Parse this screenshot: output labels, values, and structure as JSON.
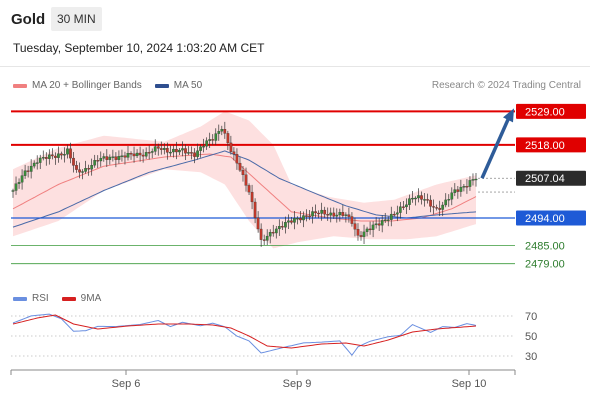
{
  "header": {
    "symbol": "Gold",
    "interval": "30 MIN",
    "datetime": "Tuesday, September 10, 2024 1:03:20 AM CET"
  },
  "legend": {
    "main": [
      {
        "name": "MA 20 + Bollinger Bands",
        "color": "#f08080"
      },
      {
        "name": "MA 50",
        "color": "#2f4f8f"
      }
    ],
    "rsi": [
      {
        "name": "RSI",
        "color": "#6a8fe0"
      },
      {
        "name": "9MA",
        "color": "#d62020"
      }
    ]
  },
  "copyright": "Research © 2024 Trading Central",
  "chart_data": [
    {
      "type": "candlestick",
      "x_labels": [
        "Sep 6",
        "Sep 9",
        "Sep 10"
      ],
      "ylim": [
        2472,
        2536
      ],
      "current_price": 2507.04,
      "levels": [
        {
          "label": "2529.00",
          "value": 2529.0,
          "kind": "resistance",
          "color": "#e00000"
        },
        {
          "label": "2518.00",
          "value": 2518.0,
          "kind": "resistance",
          "color": "#e00000"
        },
        {
          "label": "2507.04",
          "value": 2507.04,
          "kind": "last",
          "color": "#333333"
        },
        {
          "label": "2494.00",
          "value": 2494.0,
          "kind": "pivot",
          "color": "#1e5ad6"
        },
        {
          "label": "2485.00",
          "value": 2485.0,
          "kind": "support",
          "color": "#3a9a3a"
        },
        {
          "label": "2479.00",
          "value": 2479.0,
          "kind": "support",
          "color": "#3a9a3a"
        }
      ],
      "forecast": {
        "from": 2507.04,
        "to": 2529.0,
        "color": "#2e5c99"
      },
      "price_keypoints": [
        [
          0,
          2503
        ],
        [
          4,
          2509
        ],
        [
          8,
          2513
        ],
        [
          12,
          2514
        ],
        [
          16,
          2515
        ],
        [
          18,
          2516
        ],
        [
          21,
          2509
        ],
        [
          24,
          2510
        ],
        [
          28,
          2513
        ],
        [
          32,
          2514
        ],
        [
          36,
          2514
        ],
        [
          40,
          2515
        ],
        [
          44,
          2515
        ],
        [
          48,
          2517
        ],
        [
          52,
          2516
        ],
        [
          56,
          2516
        ],
        [
          60,
          2515
        ],
        [
          63,
          2518
        ],
        [
          66,
          2520
        ],
        [
          69,
          2524
        ],
        [
          72,
          2516
        ],
        [
          75,
          2510
        ],
        [
          78,
          2503
        ],
        [
          82,
          2486
        ],
        [
          86,
          2490
        ],
        [
          90,
          2492
        ],
        [
          94,
          2494
        ],
        [
          98,
          2495
        ],
        [
          102,
          2496
        ],
        [
          106,
          2495
        ],
        [
          110,
          2495
        ],
        [
          112,
          2493
        ],
        [
          114,
          2488
        ],
        [
          116,
          2489
        ],
        [
          120,
          2492
        ],
        [
          124,
          2494
        ],
        [
          126,
          2495
        ],
        [
          128,
          2497
        ],
        [
          132,
          2501
        ],
        [
          136,
          2500
        ],
        [
          140,
          2497
        ],
        [
          142,
          2498
        ],
        [
          146,
          2503
        ],
        [
          150,
          2505
        ],
        [
          153,
          2507.04
        ]
      ],
      "ma20_keypoints": [
        [
          0,
          2497
        ],
        [
          15,
          2505
        ],
        [
          30,
          2511
        ],
        [
          50,
          2514
        ],
        [
          65,
          2515
        ],
        [
          72,
          2514
        ],
        [
          82,
          2505
        ],
        [
          92,
          2496
        ],
        [
          105,
          2494
        ],
        [
          115,
          2493
        ],
        [
          125,
          2493
        ],
        [
          135,
          2494
        ],
        [
          145,
          2497
        ],
        [
          153,
          2501
        ]
      ],
      "ma50_keypoints": [
        [
          0,
          2491
        ],
        [
          15,
          2496
        ],
        [
          30,
          2503
        ],
        [
          45,
          2509
        ],
        [
          60,
          2513
        ],
        [
          70,
          2516
        ],
        [
          78,
          2513
        ],
        [
          88,
          2507
        ],
        [
          100,
          2502
        ],
        [
          110,
          2498
        ],
        [
          120,
          2495
        ],
        [
          130,
          2494
        ],
        [
          140,
          2495
        ],
        [
          153,
          2496
        ]
      ],
      "bb_upper_keypoints": [
        [
          0,
          2510
        ],
        [
          15,
          2517
        ],
        [
          30,
          2521
        ],
        [
          50,
          2519
        ],
        [
          62,
          2524
        ],
        [
          70,
          2529
        ],
        [
          78,
          2526
        ],
        [
          86,
          2518
        ],
        [
          92,
          2505
        ],
        [
          104,
          2501
        ],
        [
          116,
          2499
        ],
        [
          126,
          2500
        ],
        [
          140,
          2505
        ],
        [
          153,
          2508
        ]
      ],
      "bb_lower_keypoints": [
        [
          0,
          2488
        ],
        [
          15,
          2493
        ],
        [
          30,
          2503
        ],
        [
          50,
          2510
        ],
        [
          62,
          2509
        ],
        [
          70,
          2505
        ],
        [
          78,
          2493
        ],
        [
          86,
          2484
        ],
        [
          94,
          2486
        ],
        [
          106,
          2488
        ],
        [
          118,
          2487
        ],
        [
          130,
          2487
        ],
        [
          140,
          2488
        ],
        [
          153,
          2492
        ]
      ]
    },
    {
      "type": "line",
      "name": "RSI",
      "ylim": [
        20,
        80
      ],
      "y_ticks": [
        70,
        50,
        30
      ],
      "rsi_keypoints": [
        [
          0,
          63
        ],
        [
          6,
          70
        ],
        [
          12,
          72
        ],
        [
          16,
          67
        ],
        [
          20,
          55
        ],
        [
          24,
          55
        ],
        [
          28,
          60
        ],
        [
          34,
          59
        ],
        [
          42,
          62
        ],
        [
          48,
          65
        ],
        [
          52,
          60
        ],
        [
          56,
          63
        ],
        [
          62,
          61
        ],
        [
          66,
          62
        ],
        [
          70,
          60
        ],
        [
          74,
          49
        ],
        [
          78,
          46
        ],
        [
          82,
          32
        ],
        [
          90,
          40
        ],
        [
          96,
          42
        ],
        [
          102,
          45
        ],
        [
          108,
          44
        ],
        [
          112,
          32
        ],
        [
          114,
          38
        ],
        [
          118,
          46
        ],
        [
          124,
          48
        ],
        [
          128,
          52
        ],
        [
          132,
          60
        ],
        [
          138,
          55
        ],
        [
          142,
          58
        ],
        [
          146,
          60
        ],
        [
          150,
          61
        ],
        [
          153,
          62
        ]
      ],
      "ma9_keypoints": [
        [
          0,
          62
        ],
        [
          8,
          68
        ],
        [
          14,
          71
        ],
        [
          20,
          62
        ],
        [
          28,
          57
        ],
        [
          38,
          60
        ],
        [
          48,
          62
        ],
        [
          58,
          62
        ],
        [
          66,
          61
        ],
        [
          72,
          58
        ],
        [
          78,
          50
        ],
        [
          84,
          40
        ],
        [
          92,
          38
        ],
        [
          102,
          42
        ],
        [
          110,
          43
        ],
        [
          116,
          40
        ],
        [
          124,
          46
        ],
        [
          132,
          54
        ],
        [
          140,
          57
        ],
        [
          153,
          60
        ]
      ]
    }
  ]
}
